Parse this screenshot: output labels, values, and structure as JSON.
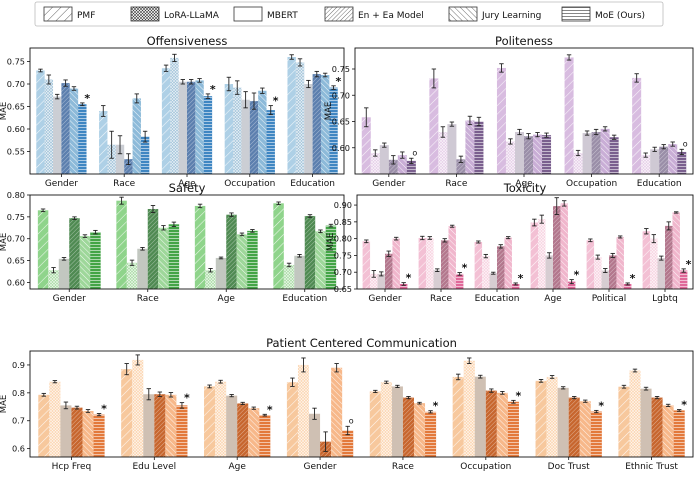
{
  "legend": [
    "PMF",
    "LoRA-LLaMA",
    "MBERT",
    "En + Ea Model",
    "Jury Learning",
    "MoE (Ours)"
  ],
  "colors": {
    "offensiveness": [
      "#aed0e6",
      "#a3c4da",
      "#cbced4",
      "#5c7fae",
      "#8dbad9",
      "#3f86c2"
    ],
    "politeness": [
      "#d8bce0",
      "#e6cfe8",
      "#cfc9d4",
      "#9a8ea8",
      "#c9aed6",
      "#7a5f8e"
    ],
    "safety": [
      "#8fd48b",
      "#aadca6",
      "#c2c7c0",
      "#4f8a52",
      "#9ed79a",
      "#43a446"
    ],
    "toxicity": [
      "#f3c0d4",
      "#f7d2e0",
      "#d7cdd2",
      "#b3778d",
      "#f0b6cc",
      "#e06899"
    ],
    "pcc": [
      "#f7c89d",
      "#fbd5b0",
      "#cfc0b3",
      "#c7662e",
      "#f7b88a",
      "#e3793b"
    ]
  },
  "chart_data": [
    {
      "type": "bar",
      "title": "Offensiveness",
      "ylabel": "MAE",
      "ylim": [
        0.5,
        0.78
      ],
      "yticks": [
        "0.55",
        "0.60",
        "0.65",
        "0.70",
        "0.75"
      ],
      "yticks_values": [
        0.55,
        0.6,
        0.65,
        0.7,
        0.75
      ],
      "categories": [
        "Gender",
        "Race",
        "Age",
        "Occupation",
        "Education"
      ],
      "series": [
        {
          "name": "PMF",
          "values": [
            0.73,
            0.64,
            0.735,
            0.7,
            0.76
          ],
          "errors": [
            0.003,
            0.012,
            0.007,
            0.015,
            0.005
          ]
        },
        {
          "name": "LoRA-LLaMA",
          "values": [
            0.71,
            0.565,
            0.758,
            0.692,
            0.748
          ],
          "errors": [
            0.01,
            0.03,
            0.008,
            0.015,
            0.008
          ]
        },
        {
          "name": "MBERT",
          "values": [
            0.672,
            0.565,
            0.705,
            0.665,
            0.7
          ],
          "errors": [
            0.005,
            0.02,
            0.005,
            0.018,
            0.008
          ]
        },
        {
          "name": "En + Ea Model",
          "values": [
            0.702,
            0.533,
            0.705,
            0.662,
            0.722
          ],
          "errors": [
            0.007,
            0.012,
            0.005,
            0.018,
            0.006
          ]
        },
        {
          "name": "Jury Learning",
          "values": [
            0.69,
            0.668,
            0.708,
            0.685,
            0.72
          ],
          "errors": [
            0.004,
            0.01,
            0.004,
            0.006,
            0.004
          ]
        },
        {
          "name": "MoE (Ours)",
          "values": [
            0.655,
            0.583,
            0.673,
            0.642,
            0.692
          ],
          "errors": [
            0.003,
            0.012,
            0.005,
            0.01,
            0.004
          ]
        }
      ],
      "markers": [
        "*",
        "",
        "*",
        "*",
        "*"
      ]
    },
    {
      "type": "bar",
      "title": "Politeness",
      "ylabel": "MAE",
      "ylim": [
        0.55,
        0.79
      ],
      "yticks": [
        "0.60",
        "0.65",
        "0.70",
        "0.75"
      ],
      "yticks_values": [
        0.6,
        0.65,
        0.7,
        0.75
      ],
      "categories": [
        "Gender",
        "Race",
        "Age",
        "Occupation",
        "Education"
      ],
      "series": [
        {
          "name": "PMF",
          "values": [
            0.658,
            0.732,
            0.752,
            0.772,
            0.733
          ],
          "errors": [
            0.018,
            0.018,
            0.008,
            0.005,
            0.008
          ]
        },
        {
          "name": "LoRA-LLaMA",
          "values": [
            0.59,
            0.63,
            0.612,
            0.59,
            0.586
          ],
          "errors": [
            0.006,
            0.01,
            0.005,
            0.005,
            0.004
          ]
        },
        {
          "name": "MBERT",
          "values": [
            0.605,
            0.645,
            0.63,
            0.628,
            0.597
          ],
          "errors": [
            0.004,
            0.004,
            0.005,
            0.004,
            0.004
          ]
        },
        {
          "name": "En + Ea Model",
          "values": [
            0.577,
            0.578,
            0.622,
            0.63,
            0.602
          ],
          "errors": [
            0.008,
            0.006,
            0.005,
            0.005,
            0.004
          ]
        },
        {
          "name": "Jury Learning",
          "values": [
            0.586,
            0.652,
            0.625,
            0.636,
            0.607
          ],
          "errors": [
            0.006,
            0.008,
            0.004,
            0.004,
            0.004
          ]
        },
        {
          "name": "MoE (Ours)",
          "values": [
            0.575,
            0.65,
            0.624,
            0.62,
            0.592
          ],
          "errors": [
            0.005,
            0.008,
            0.004,
            0.004,
            0.005
          ]
        }
      ],
      "markers": [
        "o",
        "",
        "",
        "",
        "o"
      ]
    },
    {
      "type": "bar",
      "title": "Safety",
      "ylabel": "MAE",
      "ylim": [
        0.585,
        0.8
      ],
      "yticks": [
        "0.60",
        "0.65",
        "0.70",
        "0.75",
        "0.80"
      ],
      "yticks_values": [
        0.6,
        0.65,
        0.7,
        0.75,
        0.8
      ],
      "categories": [
        "Gender",
        "Race",
        "Age",
        "Education"
      ],
      "series": [
        {
          "name": "PMF",
          "values": [
            0.765,
            0.787,
            0.775,
            0.781
          ],
          "errors": [
            0.003,
            0.008,
            0.004,
            0.003
          ]
        },
        {
          "name": "LoRA-LLaMA",
          "values": [
            0.628,
            0.645,
            0.628,
            0.64
          ],
          "errors": [
            0.006,
            0.006,
            0.004,
            0.004
          ]
        },
        {
          "name": "MBERT",
          "values": [
            0.654,
            0.677,
            0.656,
            0.661
          ],
          "errors": [
            0.003,
            0.003,
            0.002,
            0.003
          ]
        },
        {
          "name": "En + Ea Model",
          "values": [
            0.747,
            0.768,
            0.755,
            0.752
          ],
          "errors": [
            0.003,
            0.008,
            0.004,
            0.003
          ]
        },
        {
          "name": "Jury Learning",
          "values": [
            0.706,
            0.725,
            0.71,
            0.717
          ],
          "errors": [
            0.003,
            0.005,
            0.003,
            0.003
          ]
        },
        {
          "name": "MoE (Ours)",
          "values": [
            0.715,
            0.733,
            0.718,
            0.73
          ],
          "errors": [
            0.004,
            0.005,
            0.003,
            0.003
          ]
        }
      ],
      "markers": [
        "",
        "",
        "",
        ""
      ]
    },
    {
      "type": "bar",
      "title": "Toxicity",
      "ylabel": "MAE",
      "ylim": [
        0.65,
        0.93
      ],
      "yticks": [
        "0.65",
        "0.70",
        "0.75",
        "0.80",
        "0.85",
        "0.90"
      ],
      "yticks_values": [
        0.65,
        0.7,
        0.75,
        0.8,
        0.85,
        0.9
      ],
      "categories": [
        "Gender",
        "Race",
        "Education",
        "Age",
        "Political",
        "Lgbtq"
      ],
      "series": [
        {
          "name": "PMF",
          "values": [
            0.792,
            0.802,
            0.79,
            0.848,
            0.795,
            0.822
          ],
          "errors": [
            0.004,
            0.005,
            0.003,
            0.01,
            0.004,
            0.008
          ]
        },
        {
          "name": "LoRA-LLaMA",
          "values": [
            0.695,
            0.802,
            0.748,
            0.858,
            0.745,
            0.8
          ],
          "errors": [
            0.01,
            0.004,
            0.005,
            0.012,
            0.006,
            0.012
          ]
        },
        {
          "name": "MBERT",
          "values": [
            0.695,
            0.706,
            0.697,
            0.75,
            0.705,
            0.742
          ],
          "errors": [
            0.006,
            0.004,
            0.003,
            0.008,
            0.006,
            0.006
          ]
        },
        {
          "name": "En + Ea Model",
          "values": [
            0.755,
            0.795,
            0.777,
            0.897,
            0.75,
            0.838
          ],
          "errors": [
            0.008,
            0.005,
            0.005,
            0.025,
            0.006,
            0.012
          ]
        },
        {
          "name": "Jury Learning",
          "values": [
            0.8,
            0.837,
            0.803,
            0.905,
            0.805,
            0.878
          ],
          "errors": [
            0.004,
            0.003,
            0.003,
            0.008,
            0.003,
            0.002
          ]
        },
        {
          "name": "MoE (Ours)",
          "values": [
            0.665,
            0.695,
            0.665,
            0.672,
            0.665,
            0.705
          ],
          "errors": [
            0.004,
            0.004,
            0.003,
            0.006,
            0.003,
            0.005
          ]
        }
      ],
      "markers": [
        "*",
        "*",
        "*",
        "*",
        "*",
        "*"
      ]
    },
    {
      "type": "bar",
      "title": "Patient Centered Communication",
      "ylabel": "MAE",
      "ylim": [
        0.57,
        0.95
      ],
      "yticks": [
        "0.6",
        "0.7",
        "0.8",
        "0.9"
      ],
      "yticks_values": [
        0.6,
        0.7,
        0.8,
        0.9
      ],
      "categories": [
        "Hcp Freq",
        "Edu Level",
        "Age",
        "Gender",
        "Race",
        "Occupation",
        "Doc Trust",
        "Ethnic Trust"
      ],
      "series": [
        {
          "name": "PMF",
          "values": [
            0.793,
            0.885,
            0.823,
            0.838,
            0.805,
            0.857,
            0.843,
            0.822
          ],
          "errors": [
            0.005,
            0.02,
            0.005,
            0.015,
            0.004,
            0.01,
            0.005,
            0.005
          ]
        },
        {
          "name": "LoRA-LLaMA",
          "values": [
            0.84,
            0.918,
            0.84,
            0.9,
            0.838,
            0.915,
            0.857,
            0.88
          ],
          "errors": [
            0.004,
            0.018,
            0.005,
            0.025,
            0.004,
            0.01,
            0.005,
            0.005
          ]
        },
        {
          "name": "MBERT",
          "values": [
            0.755,
            0.795,
            0.79,
            0.725,
            0.823,
            0.858,
            0.818,
            0.815
          ],
          "errors": [
            0.012,
            0.02,
            0.004,
            0.02,
            0.004,
            0.005,
            0.004,
            0.005
          ]
        },
        {
          "name": "En + Ea Model",
          "values": [
            0.747,
            0.795,
            0.762,
            0.625,
            0.783,
            0.808,
            0.783,
            0.783
          ],
          "errors": [
            0.005,
            0.008,
            0.004,
            0.035,
            0.004,
            0.006,
            0.004,
            0.004
          ]
        },
        {
          "name": "Jury Learning",
          "values": [
            0.735,
            0.793,
            0.745,
            0.89,
            0.763,
            0.8,
            0.77,
            0.755
          ],
          "errors": [
            0.005,
            0.008,
            0.004,
            0.015,
            0.003,
            0.005,
            0.004,
            0.004
          ]
        },
        {
          "name": "MoE (Ours)",
          "values": [
            0.722,
            0.755,
            0.72,
            0.665,
            0.732,
            0.768,
            0.733,
            0.737
          ],
          "errors": [
            0.004,
            0.01,
            0.003,
            0.015,
            0.004,
            0.005,
            0.004,
            0.003
          ]
        }
      ],
      "markers": [
        "*",
        "*",
        "*",
        "o",
        "*",
        "*",
        "*",
        "*"
      ]
    }
  ]
}
